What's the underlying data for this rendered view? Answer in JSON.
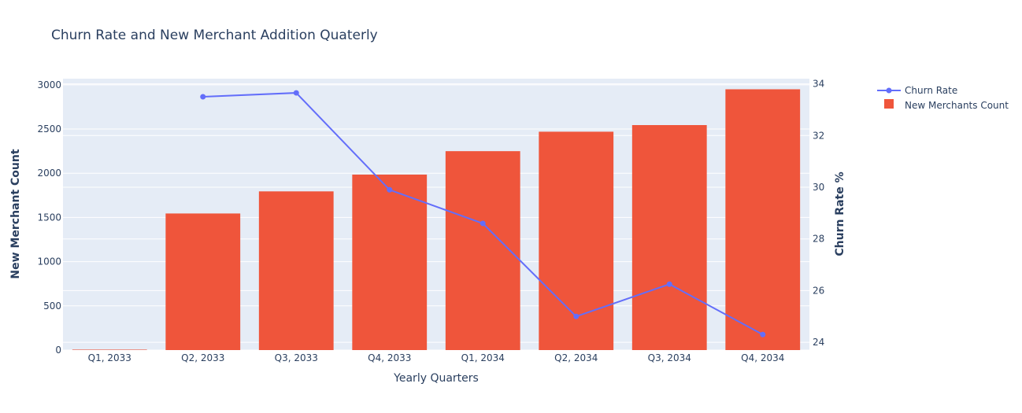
{
  "chart_data": {
    "type": "bar",
    "title": "Churn Rate and New Merchant Addition Quaterly",
    "xlabel": "Yearly Quarters",
    "ylabel": "New Merchant Count",
    "y2label": "Churn Rate %",
    "categories": [
      "Q1, 2033",
      "Q2, 2033",
      "Q3, 2033",
      "Q4, 2033",
      "Q1, 2034",
      "Q2, 2034",
      "Q3, 2034",
      "Q4, 2034"
    ],
    "series": [
      {
        "name": "New Merchants Count",
        "type": "bar",
        "axis": "y",
        "color": "#ef553b",
        "values": [
          5,
          1545,
          1795,
          1985,
          2250,
          2470,
          2545,
          2950
        ]
      },
      {
        "name": "Churn Rate",
        "type": "line",
        "axis": "y2",
        "color": "#636efa",
        "values": [
          null,
          33.5,
          33.65,
          29.9,
          28.6,
          25.0,
          26.25,
          24.3
        ]
      }
    ],
    "ylim": [
      0,
      3070
    ],
    "y2lim": [
      23.7,
      34.2
    ],
    "yticks": [
      0,
      500,
      1000,
      1500,
      2000,
      2500,
      3000
    ],
    "y2ticks": [
      24,
      26,
      28,
      30,
      32,
      34
    ],
    "grid": true,
    "legend_position": "top-right",
    "background_color": "#e5ecf6"
  }
}
